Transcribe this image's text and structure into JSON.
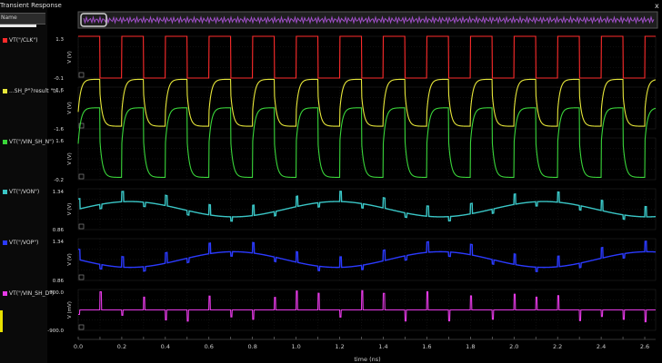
{
  "window": {
    "title": "Transient Response",
    "close_label": "x"
  },
  "sidebar": {
    "header": "Name",
    "filter_value": ""
  },
  "chart_data": {
    "type": "line",
    "xlabel": "time (ns)",
    "xlim": [
      0,
      2.65
    ],
    "xticks": [
      "0.0",
      "0.1",
      "0.2",
      "0.3",
      "0.4",
      "0.5",
      "0.6",
      "0.7",
      "0.8",
      "0.9",
      "1.0",
      "1.1",
      "1.2",
      "1.3",
      "1.4",
      "1.5",
      "1.6",
      "1.7",
      "1.8",
      "1.9",
      "2.0",
      "2.1",
      "2.2",
      "2.3",
      "2.4",
      "2.5",
      "2.6"
    ],
    "grid": true,
    "clock_period_ns": 0.2,
    "panels": [
      {
        "name": "/VT(\"/CLK\")",
        "legend": "VT(\"/CLK\")",
        "color": "#ff2b2b",
        "ylabel": "V (V)",
        "ylim": [
          -0.1,
          1.3
        ],
        "ytick_top": "1.3",
        "ytick_bottom": "-0.1",
        "low": -0.1,
        "high": 1.3,
        "shape": "square"
      },
      {
        "name": "SH_P",
        "legend": "...SH_P\"?result \"tr...",
        "color": "#e8e83a",
        "ylabel": "V (V)",
        "ylim": [
          -1.6,
          1.6
        ],
        "ytick_top": "1.6",
        "ytick_bottom": "-1.6",
        "low": -1.4,
        "high": 1.1,
        "shape": "rc"
      },
      {
        "name": "VIN_SH_N",
        "legend": "VT(\"/VIN_SH_N\")",
        "color": "#3ad63a",
        "ylabel": "V (V)",
        "ylim": [
          -0.2,
          1.6
        ],
        "ytick_top": "1.6",
        "ytick_bottom": "-0.2",
        "low": -0.1,
        "high": 1.45,
        "shape": "rc"
      },
      {
        "name": "VON",
        "legend": "VT(\"/VON\")",
        "color": "#3ac6c6",
        "ylabel": "V (V)",
        "ylim": [
          0.86,
          1.34
        ],
        "ytick_top": "1.34",
        "ytick_bottom": "0.86",
        "mean": 1.1,
        "amplitude": 0.09,
        "period_ns": 0.95,
        "phase": 0.0,
        "shape": "sine"
      },
      {
        "name": "VOP",
        "legend": "VT(\"/VOP\")",
        "color": "#2b3aff",
        "ylabel": "V (V)",
        "ylim": [
          0.86,
          1.34
        ],
        "ytick_top": "1.34",
        "ytick_bottom": "0.86",
        "mean": 1.1,
        "amplitude": 0.09,
        "period_ns": 0.95,
        "phase": 3.14,
        "shape": "sine"
      },
      {
        "name": "VIN_SH_D",
        "legend": "VT(\"/VIN_SH_D\")",
        "color": "#e83ae8",
        "ylabel": "V (mV)",
        "ylim": [
          -900,
          900
        ],
        "ytick_top": "900.0",
        "ytick_bottom": "-900.0",
        "mean": 0,
        "shape": "spikes"
      }
    ]
  }
}
